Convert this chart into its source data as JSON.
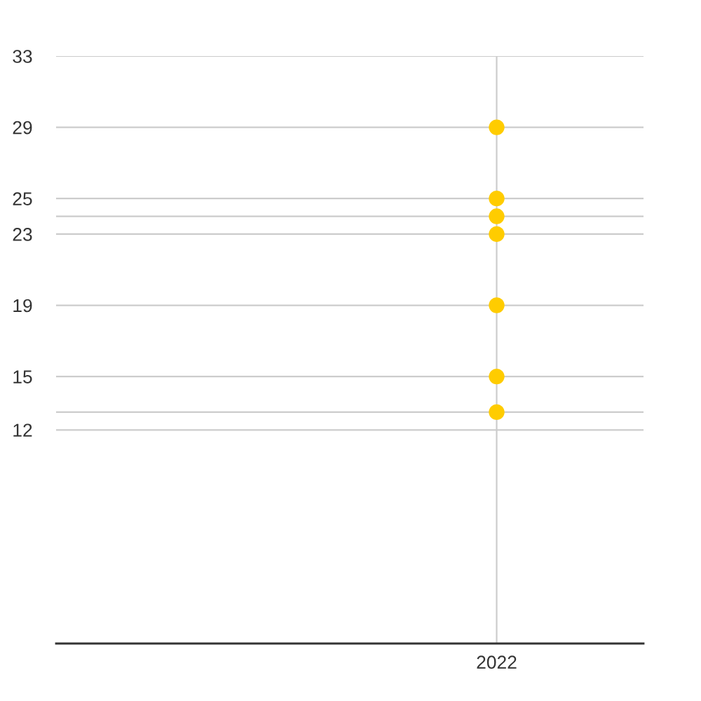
{
  "chart_data": {
    "type": "scatter",
    "categories": [
      null,
      null,
      null,
      "2022",
      null
    ],
    "series": [
      {
        "color": "#ffcc00",
        "values": [
          null,
          null,
          null,
          29,
          null
        ]
      },
      {
        "color": "#ffcc00",
        "values": [
          null,
          null,
          null,
          25,
          null
        ]
      },
      {
        "color": "#ffcc00",
        "values": [
          null,
          null,
          null,
          24,
          null
        ]
      },
      {
        "color": "#ffcc00",
        "values": [
          null,
          null,
          null,
          23,
          null
        ]
      },
      {
        "color": "#ffcc00",
        "values": [
          null,
          null,
          null,
          19,
          null
        ]
      },
      {
        "color": "#ffcc00",
        "values": [
          null,
          null,
          null,
          15,
          null
        ]
      },
      {
        "color": "#ffcc00",
        "values": [
          null,
          null,
          null,
          13,
          null
        ]
      }
    ],
    "ylim": [
      0,
      33
    ],
    "yticks": [
      12,
      {
        "value": 13,
        "label": null
      },
      15,
      19,
      23,
      {
        "value": 24,
        "label": null
      },
      25,
      29,
      33
    ],
    "grid": true,
    "marker": "circle"
  }
}
